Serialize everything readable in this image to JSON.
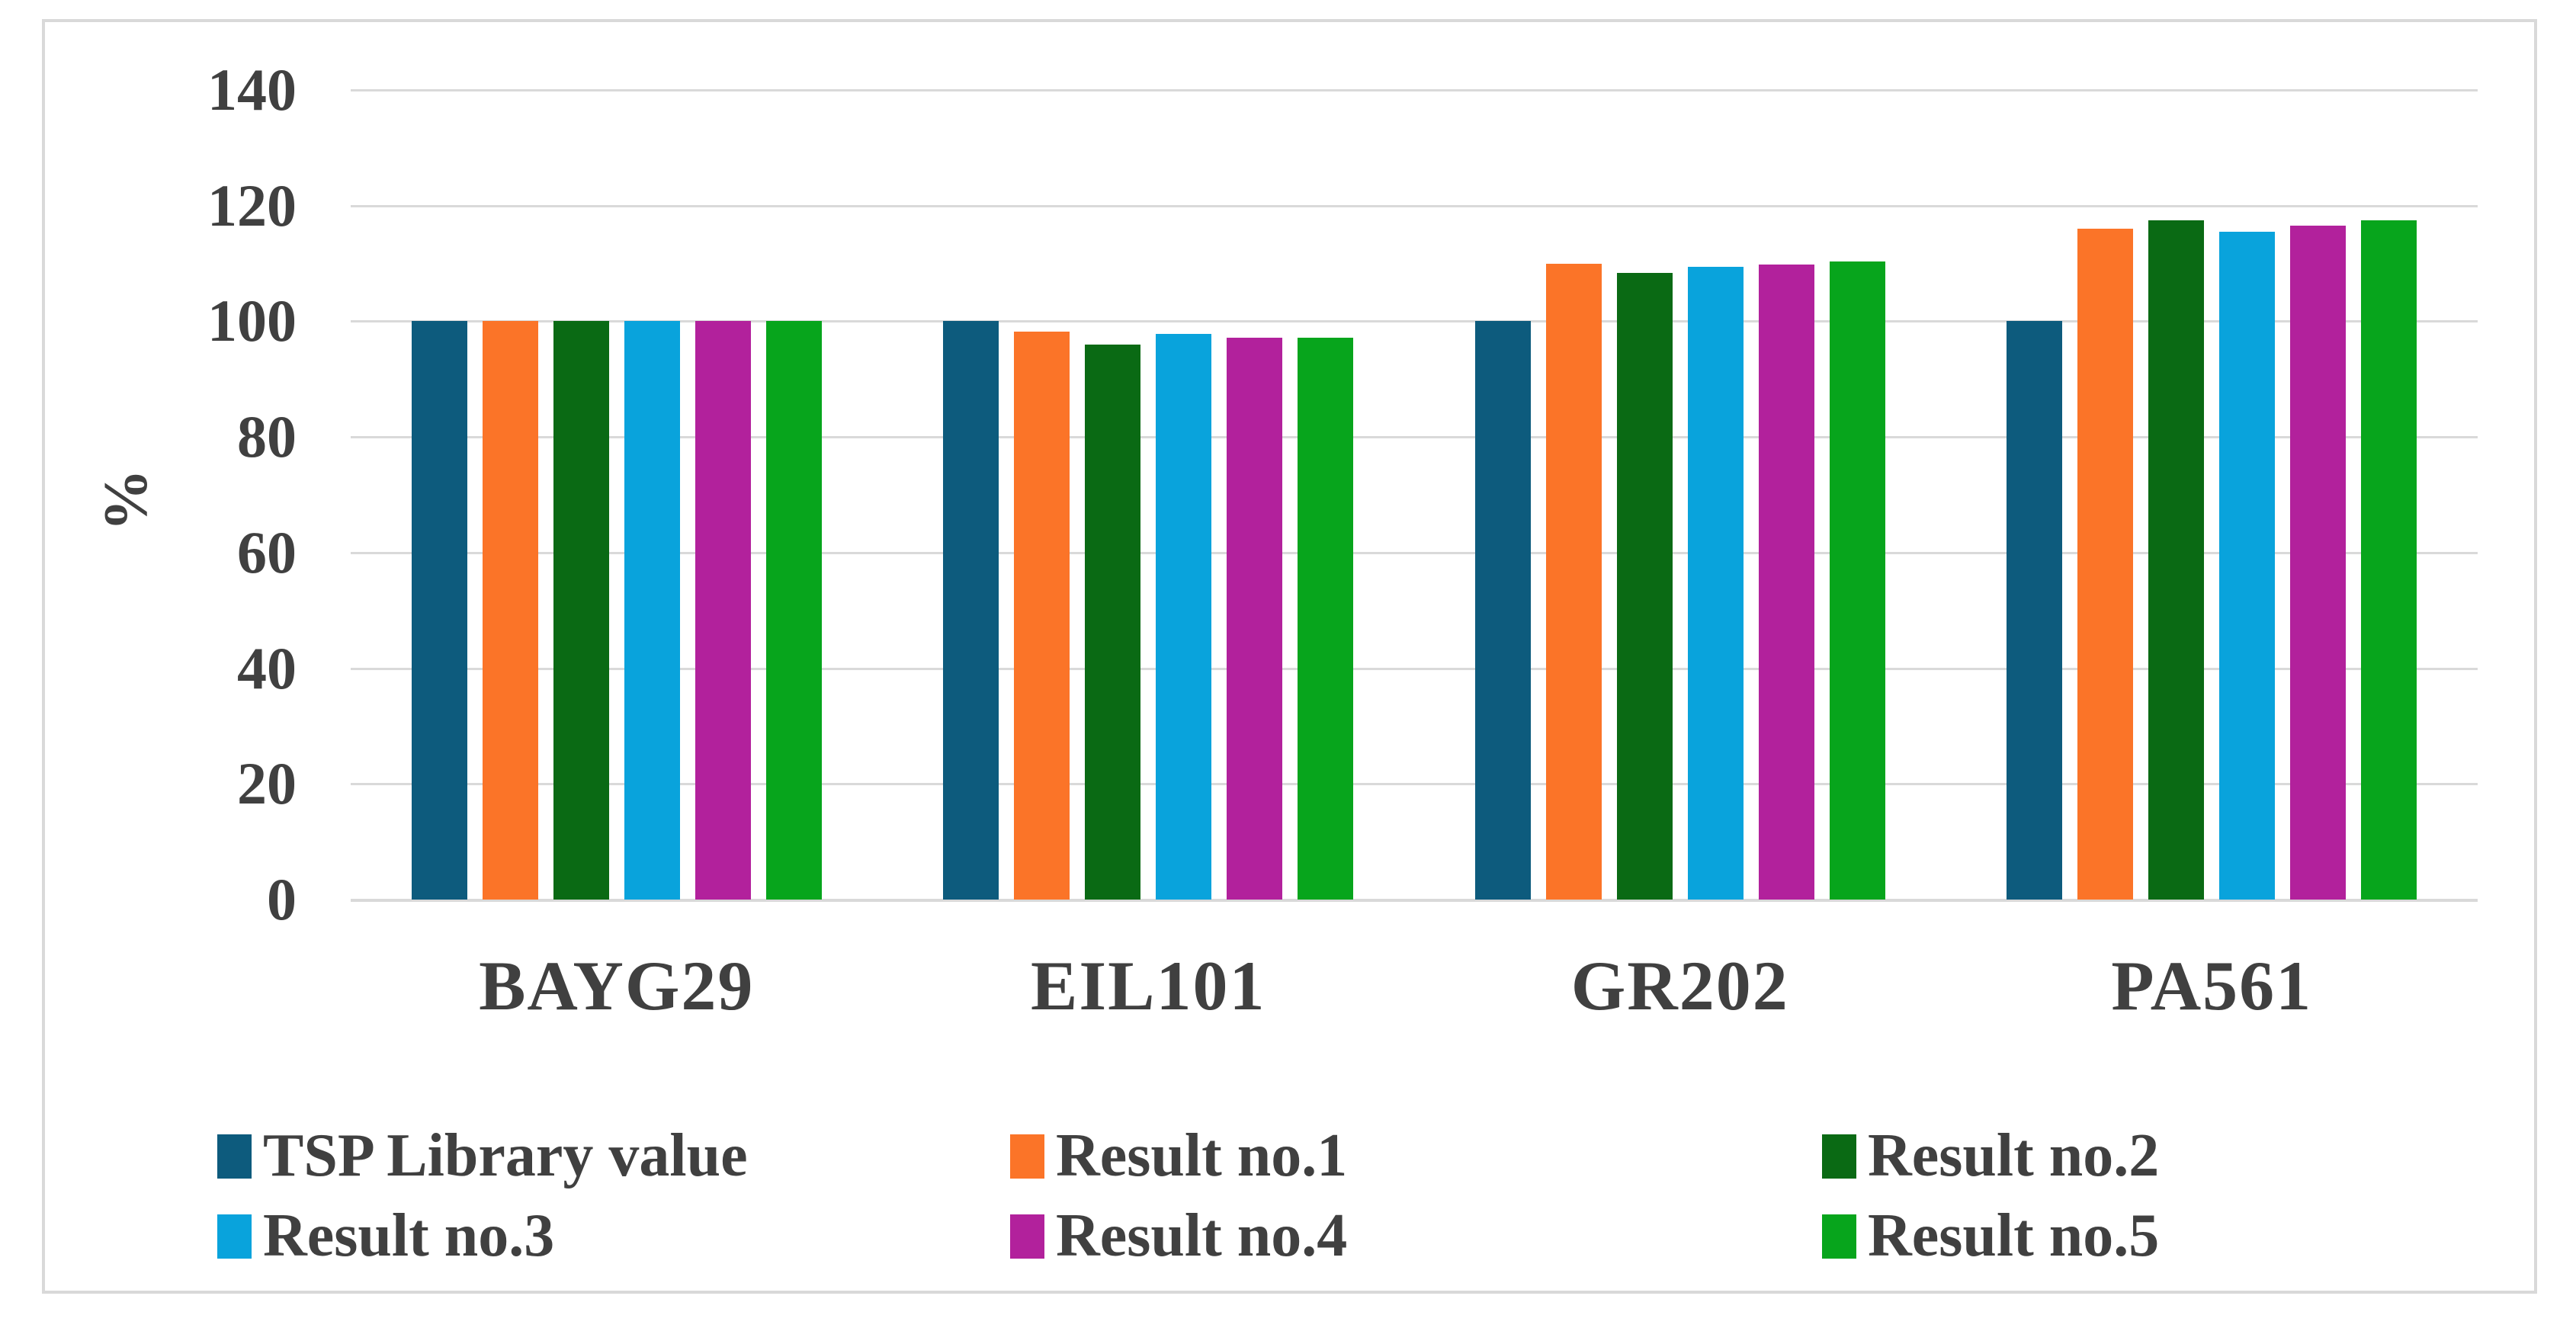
{
  "figure": {
    "background": "#ffffff",
    "frame_border_color": "#d9d9d9",
    "gridline_color": "#d9d9d9",
    "axis_line_color": "#d9d9d9",
    "text_color": "#404040"
  },
  "chart_data": {
    "type": "bar",
    "title": "",
    "xlabel": "",
    "ylabel": "%",
    "ylim": [
      0,
      140
    ],
    "yticks": [
      0,
      20,
      40,
      60,
      80,
      100,
      120,
      140
    ],
    "grid": true,
    "legend_position": "bottom",
    "categories": [
      "BAYG29",
      "EIL101",
      "GR202",
      "PA561"
    ],
    "series": [
      {
        "name": "TSP Library value",
        "color": "#0d5b7d",
        "values": [
          100,
          100,
          100,
          100
        ]
      },
      {
        "name": "Result no.1",
        "color": "#fb7428",
        "values": [
          100,
          98.2,
          110,
          116
        ]
      },
      {
        "name": "Result no.2",
        "color": "#0a6a14",
        "values": [
          100,
          96,
          108.3,
          117.4
        ]
      },
      {
        "name": "Result no.3",
        "color": "#09a3dc",
        "values": [
          100,
          97.8,
          109.4,
          115.5
        ]
      },
      {
        "name": "Result no.4",
        "color": "#b2219c",
        "values": [
          100,
          97.1,
          109.8,
          116.6
        ]
      },
      {
        "name": "Result no.5",
        "color": "#07a51c",
        "values": [
          100,
          97.2,
          110.3,
          117.4
        ]
      }
    ]
  }
}
